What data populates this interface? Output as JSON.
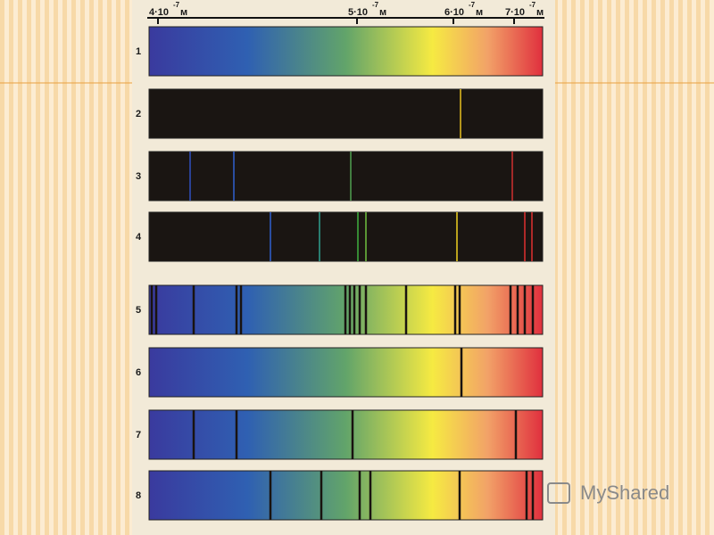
{
  "axis_labels": [
    {
      "mantissa": "4·10",
      "exponent": "-7",
      "unit": "м"
    },
    {
      "mantissa": "5·10",
      "exponent": "-7",
      "unit": "м"
    },
    {
      "mantissa": "6·10",
      "exponent": "-7",
      "unit": "м"
    },
    {
      "mantissa": "7·10",
      "exponent": "-7",
      "unit": "м"
    }
  ],
  "rows": [
    "1",
    "2",
    "3",
    "4",
    "5",
    "6",
    "7",
    "8"
  ],
  "watermark": "MyShared"
}
